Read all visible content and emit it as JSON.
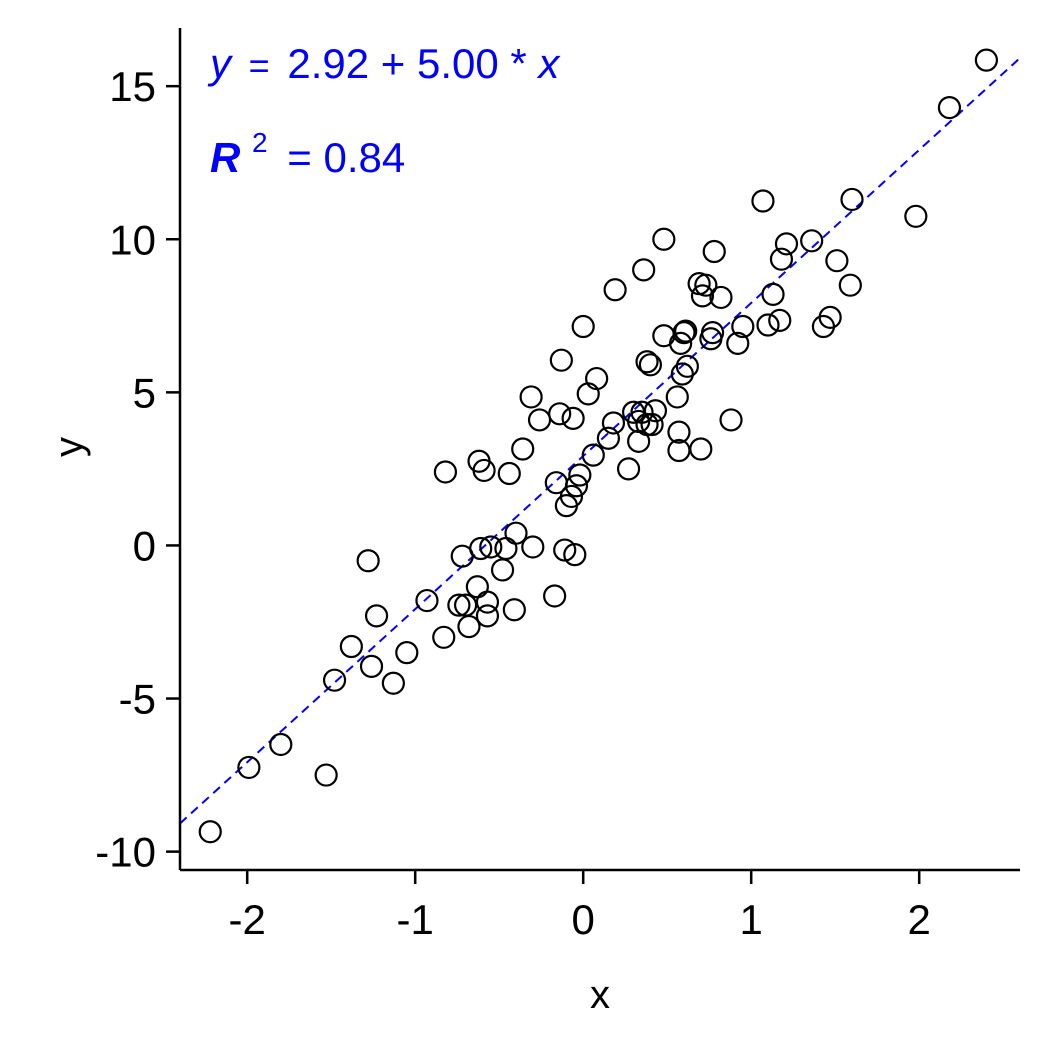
{
  "chart_data": {
    "type": "scatter",
    "title": "",
    "xlabel": "x",
    "ylabel": "y",
    "xlim": [
      -2.4,
      2.6
    ],
    "ylim": [
      -10.6,
      16.9
    ],
    "xticks": [
      -2,
      -1,
      0,
      1,
      2
    ],
    "yticks": [
      -10,
      -5,
      0,
      5,
      10,
      15
    ],
    "xtick_labels": [
      "-2",
      "-1",
      "0",
      "1",
      "2"
    ],
    "ytick_labels": [
      "-10",
      "-5",
      "0",
      "5",
      "10",
      "15"
    ],
    "grid": false,
    "legend": "none",
    "colors": {
      "points": "#000000",
      "fit": "#0000ff",
      "annotation": "#0000ff"
    },
    "fit_line": {
      "intercept": 2.92,
      "slope": 5.0,
      "style": "dashed"
    },
    "annotations": {
      "eq_y": "y",
      "eq_equals": "=",
      "eq_rhs": "2.92 + 5.00 * ",
      "eq_x": "x",
      "r2_symbol": "R",
      "r2_power": "2",
      "r2_value": "= 0.84"
    },
    "points": [
      [
        -2.22,
        -9.35
      ],
      [
        -1.99,
        -7.25
      ],
      [
        -1.8,
        -6.5
      ],
      [
        -1.53,
        -7.5
      ],
      [
        -1.48,
        -4.4
      ],
      [
        -1.38,
        -3.3
      ],
      [
        -1.28,
        -0.5
      ],
      [
        -1.26,
        -3.95
      ],
      [
        -1.23,
        -2.3
      ],
      [
        -1.13,
        -4.5
      ],
      [
        -1.05,
        -3.5
      ],
      [
        -0.93,
        -1.8
      ],
      [
        -0.83,
        -3.0
      ],
      [
        -0.82,
        2.4
      ],
      [
        -0.74,
        -1.95
      ],
      [
        -0.72,
        -0.35
      ],
      [
        -0.7,
        -1.95
      ],
      [
        -0.68,
        -2.65
      ],
      [
        -0.63,
        -1.35
      ],
      [
        -0.62,
        2.75
      ],
      [
        -0.61,
        -0.1
      ],
      [
        -0.59,
        2.45
      ],
      [
        -0.57,
        -2.3
      ],
      [
        -0.57,
        -1.85
      ],
      [
        -0.55,
        -0.05
      ],
      [
        -0.48,
        -0.8
      ],
      [
        -0.46,
        -0.1
      ],
      [
        -0.44,
        2.35
      ],
      [
        -0.41,
        -2.1
      ],
      [
        -0.4,
        0.4
      ],
      [
        -0.36,
        3.15
      ],
      [
        -0.31,
        4.85
      ],
      [
        -0.3,
        -0.05
      ],
      [
        -0.26,
        4.1
      ],
      [
        -0.17,
        -1.65
      ],
      [
        -0.16,
        2.05
      ],
      [
        -0.14,
        4.3
      ],
      [
        -0.13,
        6.05
      ],
      [
        -0.11,
        -0.15
      ],
      [
        -0.1,
        1.3
      ],
      [
        -0.07,
        1.6
      ],
      [
        -0.06,
        4.15
      ],
      [
        -0.05,
        -0.3
      ],
      [
        -0.04,
        1.95
      ],
      [
        -0.02,
        2.3
      ],
      [
        0.0,
        7.15
      ],
      [
        0.03,
        4.95
      ],
      [
        0.06,
        2.95
      ],
      [
        0.08,
        5.45
      ],
      [
        0.15,
        3.5
      ],
      [
        0.18,
        4.0
      ],
      [
        0.19,
        8.35
      ],
      [
        0.27,
        2.5
      ],
      [
        0.3,
        4.35
      ],
      [
        0.33,
        3.4
      ],
      [
        0.33,
        4.05
      ],
      [
        0.35,
        4.35
      ],
      [
        0.36,
        9.0
      ],
      [
        0.38,
        3.95
      ],
      [
        0.38,
        6.0
      ],
      [
        0.4,
        5.9
      ],
      [
        0.41,
        3.95
      ],
      [
        0.43,
        4.4
      ],
      [
        0.48,
        10.0
      ],
      [
        0.48,
        6.85
      ],
      [
        0.56,
        4.85
      ],
      [
        0.57,
        3.7
      ],
      [
        0.57,
        3.1
      ],
      [
        0.58,
        6.6
      ],
      [
        0.59,
        5.6
      ],
      [
        0.6,
        6.95
      ],
      [
        0.61,
        7.0
      ],
      [
        0.62,
        5.85
      ],
      [
        0.69,
        8.55
      ],
      [
        0.7,
        3.15
      ],
      [
        0.71,
        8.15
      ],
      [
        0.73,
        8.5
      ],
      [
        0.76,
        6.75
      ],
      [
        0.77,
        6.95
      ],
      [
        0.78,
        9.6
      ],
      [
        0.82,
        8.1
      ],
      [
        0.88,
        4.1
      ],
      [
        0.92,
        6.6
      ],
      [
        0.95,
        7.15
      ],
      [
        1.07,
        11.25
      ],
      [
        1.1,
        7.2
      ],
      [
        1.13,
        8.2
      ],
      [
        1.17,
        7.35
      ],
      [
        1.18,
        9.35
      ],
      [
        1.21,
        9.85
      ],
      [
        1.36,
        9.95
      ],
      [
        1.43,
        7.15
      ],
      [
        1.47,
        7.45
      ],
      [
        1.51,
        9.3
      ],
      [
        1.59,
        8.5
      ],
      [
        1.6,
        11.3
      ],
      [
        1.98,
        10.75
      ],
      [
        2.18,
        14.3
      ],
      [
        2.4,
        15.85
      ]
    ]
  }
}
